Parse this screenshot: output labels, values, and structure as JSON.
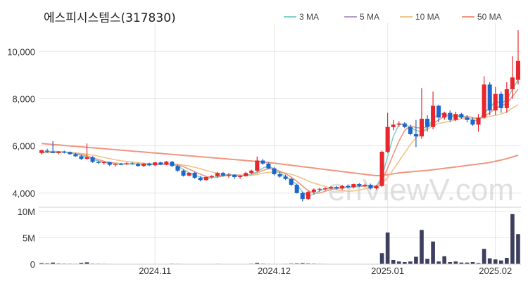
{
  "chart_data": {
    "type": "candlestick",
    "title": "에스피시스템스(317830)",
    "watermark": "enViewV.com",
    "price_axis": {
      "ticks": [
        4000,
        6000,
        8000,
        10000
      ],
      "tick_labels": [
        "4,000",
        "6,000",
        "8,000",
        "10,000"
      ],
      "ylim": [
        3400,
        11200
      ]
    },
    "volume_axis": {
      "ticks": [
        0,
        5000000,
        10000000
      ],
      "tick_labels": [
        "0",
        "5M",
        "10M"
      ],
      "ylim": [
        0,
        10000000
      ]
    },
    "x_ticks": [
      {
        "index": 20,
        "label": "2024.11"
      },
      {
        "index": 41,
        "label": "2024.12"
      },
      {
        "index": 61,
        "label": "2025.01"
      },
      {
        "index": 80,
        "label": "2025.02"
      }
    ],
    "legend": [
      {
        "name": "3 MA",
        "color": "#7fd0cc"
      },
      {
        "name": "5 MA",
        "color": "#b39cc8"
      },
      {
        "name": "10 MA",
        "color": "#f2c48a"
      },
      {
        "name": "50 MA",
        "color": "#f0967f"
      }
    ],
    "colors": {
      "up": "#e8262b",
      "down": "#1f66cc",
      "volume": "#3d3f5f",
      "grid": "#e6e6e6"
    },
    "candles": [
      [
        5700,
        5840,
        5640,
        5820
      ],
      [
        5800,
        5880,
        5700,
        5760
      ],
      [
        5760,
        6200,
        5720,
        5700
      ],
      [
        5700,
        5780,
        5650,
        5760
      ],
      [
        5760,
        5800,
        5680,
        5740
      ],
      [
        5740,
        5760,
        5620,
        5650
      ],
      [
        5650,
        5700,
        5540,
        5560
      ],
      [
        5560,
        5620,
        5400,
        5450
      ],
      [
        5450,
        6100,
        5420,
        5520
      ],
      [
        5520,
        5560,
        5280,
        5320
      ],
      [
        5320,
        5380,
        5240,
        5280
      ],
      [
        5280,
        5350,
        5200,
        5310
      ],
      [
        5310,
        5330,
        5150,
        5200
      ],
      [
        5200,
        5260,
        5120,
        5230
      ],
      [
        5230,
        5280,
        5180,
        5220
      ],
      [
        5220,
        5300,
        5200,
        5260
      ],
      [
        5260,
        5320,
        5200,
        5240
      ],
      [
        5240,
        5280,
        5120,
        5150
      ],
      [
        5150,
        5270,
        5100,
        5250
      ],
      [
        5250,
        5290,
        5150,
        5180
      ],
      [
        5180,
        5320,
        5150,
        5300
      ],
      [
        5300,
        5330,
        5180,
        5200
      ],
      [
        5200,
        5360,
        5180,
        5330
      ],
      [
        5330,
        5360,
        5100,
        5150
      ],
      [
        5150,
        5200,
        4900,
        4950
      ],
      [
        4950,
        5000,
        4700,
        4740
      ],
      [
        4740,
        4880,
        4700,
        4860
      ],
      [
        4860,
        4900,
        4600,
        4650
      ],
      [
        4650,
        4720,
        4500,
        4550
      ],
      [
        4550,
        4700,
        4520,
        4680
      ],
      [
        4680,
        4760,
        4620,
        4720
      ],
      [
        4720,
        4900,
        4650,
        4850
      ],
      [
        4850,
        4900,
        4700,
        4740
      ],
      [
        4740,
        4850,
        4650,
        4780
      ],
      [
        4780,
        4800,
        4600,
        4680
      ],
      [
        4680,
        4760,
        4600,
        4720
      ],
      [
        4720,
        4900,
        4700,
        4850
      ],
      [
        4850,
        5000,
        4800,
        4950
      ],
      [
        4950,
        5550,
        4900,
        5380
      ],
      [
        5380,
        5450,
        5200,
        5250
      ],
      [
        5250,
        5300,
        5020,
        5050
      ],
      [
        5050,
        5100,
        4750,
        4800
      ],
      [
        4800,
        4900,
        4650,
        4700
      ],
      [
        4700,
        4780,
        4550,
        4600
      ],
      [
        4600,
        4650,
        4300,
        4350
      ],
      [
        4350,
        4400,
        3980,
        4000
      ],
      [
        4000,
        4050,
        3650,
        3750
      ],
      [
        3750,
        4100,
        3700,
        4050
      ],
      [
        4050,
        4200,
        3950,
        4150
      ],
      [
        4150,
        4220,
        4050,
        4180
      ],
      [
        4180,
        4250,
        4100,
        4200
      ],
      [
        4200,
        4300,
        4180,
        4260
      ],
      [
        4260,
        4300,
        4150,
        4200
      ],
      [
        4200,
        4350,
        4150,
        4300
      ],
      [
        4300,
        4350,
        4200,
        4250
      ],
      [
        4250,
        4400,
        4200,
        4380
      ],
      [
        4380,
        4420,
        4250,
        4300
      ],
      [
        4300,
        4400,
        4250,
        4350
      ],
      [
        4350,
        4400,
        4150,
        4200
      ],
      [
        4200,
        4350,
        4150,
        4300
      ],
      [
        4300,
        5800,
        4250,
        5750
      ],
      [
        5750,
        7400,
        5700,
        6800
      ],
      [
        6800,
        7100,
        6650,
        6900
      ],
      [
        6900,
        7050,
        6800,
        6950
      ],
      [
        6950,
        7000,
        6750,
        6800
      ],
      [
        6800,
        6900,
        6450,
        6500
      ],
      [
        6500,
        7100,
        5950,
        6400
      ],
      [
        6400,
        8450,
        6300,
        7150
      ],
      [
        7150,
        7300,
        6600,
        6800
      ],
      [
        6800,
        8300,
        6700,
        7700
      ],
      [
        7700,
        7750,
        7000,
        7200
      ],
      [
        7200,
        7450,
        7100,
        7400
      ],
      [
        7400,
        7500,
        7000,
        7100
      ],
      [
        7100,
        7450,
        7050,
        7350
      ],
      [
        7350,
        7400,
        7150,
        7200
      ],
      [
        7200,
        7300,
        7000,
        7100
      ],
      [
        7100,
        7200,
        6850,
        6900
      ],
      [
        6900,
        7350,
        6600,
        7200
      ],
      [
        7200,
        8950,
        7150,
        8600
      ],
      [
        8600,
        8700,
        7300,
        7500
      ],
      [
        7500,
        8500,
        7300,
        8200
      ],
      [
        8200,
        8300,
        7400,
        7600
      ],
      [
        7600,
        8700,
        7400,
        8400
      ],
      [
        8400,
        9800,
        8000,
        8900
      ],
      [
        8800,
        10900,
        8600,
        9600
      ]
    ],
    "volumes": [
      200000,
      150000,
      300000,
      120000,
      100000,
      90000,
      80000,
      250000,
      350000,
      100000,
      90000,
      80000,
      70000,
      60000,
      60000,
      50000,
      60000,
      70000,
      60000,
      50000,
      60000,
      50000,
      70000,
      90000,
      80000,
      70000,
      60000,
      60000,
      50000,
      60000,
      50000,
      80000,
      60000,
      50000,
      50000,
      50000,
      60000,
      90000,
      250000,
      100000,
      80000,
      70000,
      60000,
      80000,
      120000,
      150000,
      200000,
      130000,
      100000,
      80000,
      70000,
      60000,
      60000,
      60000,
      60000,
      70000,
      60000,
      60000,
      60000,
      70000,
      2100000,
      6000000,
      800000,
      500000,
      400000,
      500000,
      1400000,
      6500000,
      1000000,
      4300000,
      500000,
      1500000,
      400000,
      500000,
      300000,
      300000,
      400000,
      200000,
      2900000,
      1100000,
      900000,
      700000,
      1200000,
      9500000,
      5700000
    ],
    "ma3": [
      5730,
      5750,
      5770,
      5760,
      5740,
      5720,
      5660,
      5590,
      5520,
      5440,
      5360,
      5300,
      5260,
      5250,
      5230,
      5230,
      5240,
      5230,
      5210,
      5200,
      5210,
      5230,
      5250,
      5230,
      5150,
      5000,
      4860,
      4760,
      4680,
      4620,
      4640,
      4710,
      4760,
      4790,
      4750,
      4720,
      4740,
      4800,
      4900,
      5060,
      5150,
      5020,
      4860,
      4700,
      4560,
      4350,
      4050,
      3880,
      3950,
      4100,
      4170,
      4210,
      4220,
      4240,
      4250,
      4270,
      4300,
      4330,
      4300,
      4280,
      4700,
      5550,
      6400,
      6900,
      6920,
      6800,
      6650,
      6600,
      6750,
      7150,
      7350,
      7350,
      7250,
      7250,
      7250,
      7200,
      7100,
      7050,
      7400,
      7600,
      7900,
      7800,
      7950,
      8400,
      8800
    ],
    "ma5": [
      5720,
      5730,
      5740,
      5740,
      5740,
      5720,
      5690,
      5640,
      5580,
      5500,
      5420,
      5350,
      5300,
      5270,
      5250,
      5240,
      5240,
      5230,
      5220,
      5210,
      5210,
      5220,
      5230,
      5230,
      5200,
      5120,
      5010,
      4900,
      4800,
      4700,
      4660,
      4680,
      4720,
      4750,
      4770,
      4760,
      4760,
      4790,
      4860,
      4960,
      5030,
      5010,
      4930,
      4820,
      4680,
      4500,
      4300,
      4100,
      4000,
      4000,
      4080,
      4150,
      4190,
      4220,
      4240,
      4260,
      4280,
      4300,
      4310,
      4290,
      4550,
      5050,
      5650,
      6200,
      6650,
      6850,
      6780,
      6750,
      6800,
      6950,
      7100,
      7250,
      7300,
      7300,
      7250,
      7250,
      7200,
      7150,
      7250,
      7400,
      7600,
      7700,
      7800,
      8100,
      8400
    ],
    "ma10": [
      5700,
      5710,
      5720,
      5720,
      5720,
      5710,
      5700,
      5680,
      5650,
      5610,
      5560,
      5510,
      5460,
      5410,
      5370,
      5340,
      5310,
      5290,
      5270,
      5250,
      5240,
      5230,
      5230,
      5230,
      5220,
      5190,
      5150,
      5090,
      5030,
      4960,
      4900,
      4840,
      4790,
      4760,
      4740,
      4730,
      4730,
      4750,
      4790,
      4840,
      4880,
      4890,
      4880,
      4850,
      4800,
      4720,
      4620,
      4510,
      4420,
      4350,
      4280,
      4210,
      4150,
      4100,
      4080,
      4090,
      4130,
      4180,
      4220,
      4250,
      4400,
      4650,
      5000,
      5350,
      5700,
      6050,
      6350,
      6550,
      6700,
      6850,
      6950,
      7000,
      7050,
      7100,
      7150,
      7150,
      7150,
      7150,
      7200,
      7250,
      7300,
      7350,
      7450,
      7600,
      7750
    ],
    "ma50": [
      6100,
      6080,
      6060,
      6040,
      6020,
      6000,
      5980,
      5960,
      5940,
      5920,
      5900,
      5880,
      5860,
      5840,
      5820,
      5800,
      5780,
      5760,
      5740,
      5720,
      5700,
      5680,
      5660,
      5640,
      5620,
      5600,
      5580,
      5560,
      5540,
      5520,
      5500,
      5480,
      5460,
      5440,
      5420,
      5400,
      5380,
      5360,
      5340,
      5320,
      5300,
      5270,
      5240,
      5210,
      5180,
      5150,
      5120,
      5090,
      5060,
      5030,
      5000,
      4970,
      4940,
      4910,
      4880,
      4850,
      4820,
      4790,
      4760,
      4740,
      4740,
      4780,
      4820,
      4850,
      4880,
      4900,
      4920,
      4940,
      4960,
      4990,
      5020,
      5050,
      5080,
      5110,
      5140,
      5170,
      5200,
      5230,
      5260,
      5300,
      5350,
      5400,
      5460,
      5530,
      5610
    ]
  }
}
